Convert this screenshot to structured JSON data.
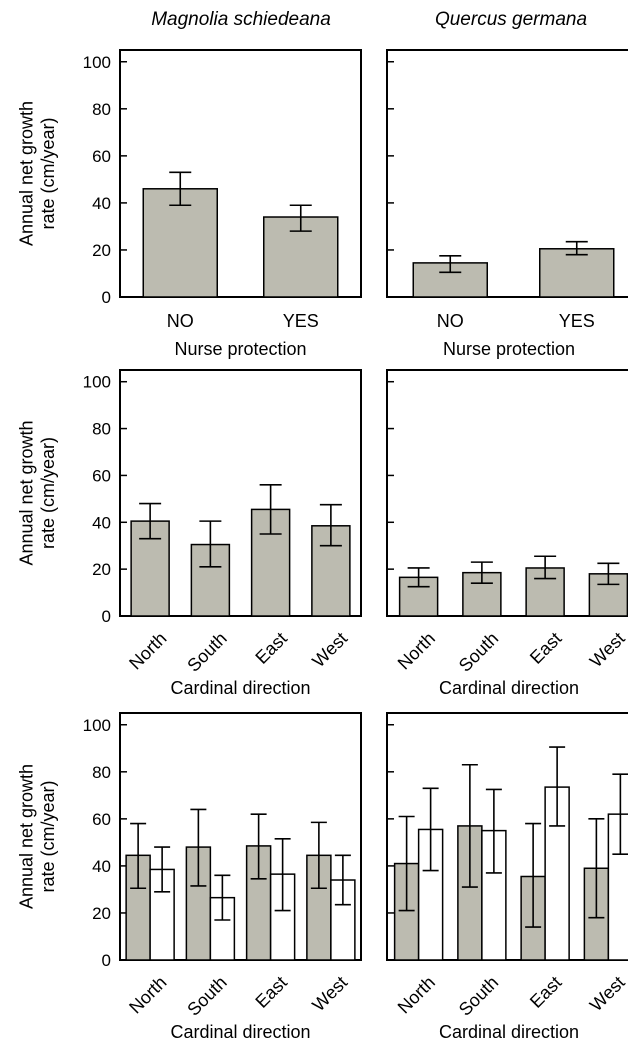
{
  "figure": {
    "column_titles": [
      "Magnolia schiedeana",
      "Quercus germana"
    ],
    "colors": {
      "gray": "#bcbbb0",
      "white": "#ffffff",
      "axis": "#000000"
    }
  },
  "chart_data": [
    {
      "type": "bar",
      "row": 0,
      "col": 0,
      "title": "Magnolia schiedeana",
      "categories": [
        "NO",
        "YES"
      ],
      "xlabel": "Nurse protection",
      "ylabel": "Annual net growth rate (cm/year)",
      "ylim": [
        0,
        105
      ],
      "yticks": [
        0,
        20,
        40,
        60,
        80,
        100
      ],
      "show_ytick_labels": true,
      "rotate_xticks": false,
      "series": [
        {
          "color": "#bcbbb0",
          "values": [
            46,
            34
          ],
          "err_low": [
            39,
            28
          ],
          "err_high": [
            53,
            39
          ]
        }
      ]
    },
    {
      "type": "bar",
      "row": 0,
      "col": 1,
      "title": "Quercus germana",
      "categories": [
        "NO",
        "YES"
      ],
      "xlabel": "Nurse protection",
      "ylabel": "",
      "ylim": [
        0,
        105
      ],
      "yticks": [
        0,
        20,
        40,
        60,
        80,
        100
      ],
      "show_ytick_labels": false,
      "rotate_xticks": false,
      "series": [
        {
          "color": "#bcbbb0",
          "values": [
            14.5,
            20.5
          ],
          "err_low": [
            10.5,
            18
          ],
          "err_high": [
            17.5,
            23.5
          ]
        }
      ]
    },
    {
      "type": "bar",
      "row": 1,
      "col": 0,
      "title": "",
      "categories": [
        "North",
        "South",
        "East",
        "West"
      ],
      "xlabel": "Cardinal direction",
      "ylabel": "Annual net growth rate (cm/year)",
      "ylim": [
        0,
        105
      ],
      "yticks": [
        0,
        20,
        40,
        60,
        80,
        100
      ],
      "show_ytick_labels": true,
      "rotate_xticks": true,
      "series": [
        {
          "color": "#bcbbb0",
          "values": [
            40.5,
            30.5,
            45.5,
            38.5
          ],
          "err_low": [
            33,
            21,
            35,
            30
          ],
          "err_high": [
            48,
            40.5,
            56,
            47.5
          ]
        }
      ]
    },
    {
      "type": "bar",
      "row": 1,
      "col": 1,
      "title": "",
      "categories": [
        "North",
        "South",
        "East",
        "West"
      ],
      "xlabel": "Cardinal direction",
      "ylabel": "",
      "ylim": [
        0,
        105
      ],
      "yticks": [
        0,
        20,
        40,
        60,
        80,
        100
      ],
      "show_ytick_labels": false,
      "rotate_xticks": true,
      "series": [
        {
          "color": "#bcbbb0",
          "values": [
            16.5,
            18.5,
            20.5,
            18
          ],
          "err_low": [
            12.5,
            14,
            16,
            13.5
          ],
          "err_high": [
            20.5,
            23,
            25.5,
            22.5
          ]
        }
      ]
    },
    {
      "type": "bar",
      "row": 2,
      "col": 0,
      "title": "",
      "categories": [
        "North",
        "South",
        "East",
        "West"
      ],
      "xlabel": "Cardinal direction",
      "ylabel": "Annual net growth rate (cm/year)",
      "ylim": [
        0,
        105
      ],
      "yticks": [
        0,
        20,
        40,
        60,
        80,
        100
      ],
      "show_ytick_labels": true,
      "rotate_xticks": true,
      "series": [
        {
          "color": "#bcbbb0",
          "values": [
            44.5,
            48,
            48.5,
            44.5
          ],
          "err_low": [
            30.5,
            31.5,
            34.5,
            30.5
          ],
          "err_high": [
            58,
            64,
            62,
            58.5
          ]
        },
        {
          "color": "#ffffff",
          "values": [
            38.5,
            26.5,
            36.5,
            34
          ],
          "err_low": [
            29,
            17,
            21,
            23.5
          ],
          "err_high": [
            48,
            36,
            51.5,
            44.5
          ]
        }
      ]
    },
    {
      "type": "bar",
      "row": 2,
      "col": 1,
      "title": "",
      "categories": [
        "North",
        "South",
        "East",
        "West"
      ],
      "xlabel": "Cardinal direction",
      "ylabel": "",
      "ylim": [
        0,
        105
      ],
      "yticks": [
        0,
        20,
        40,
        60,
        80,
        100
      ],
      "show_ytick_labels": false,
      "rotate_xticks": true,
      "series": [
        {
          "color": "#bcbbb0",
          "values": [
            41,
            57,
            35.5,
            39
          ],
          "err_low": [
            21,
            31,
            14,
            18
          ],
          "err_high": [
            61,
            83,
            58,
            60
          ]
        },
        {
          "color": "#ffffff",
          "values": [
            55.5,
            55,
            73.5,
            62
          ],
          "err_low": [
            38,
            37,
            57,
            45
          ],
          "err_high": [
            73,
            72.5,
            90.5,
            79
          ]
        }
      ]
    }
  ]
}
